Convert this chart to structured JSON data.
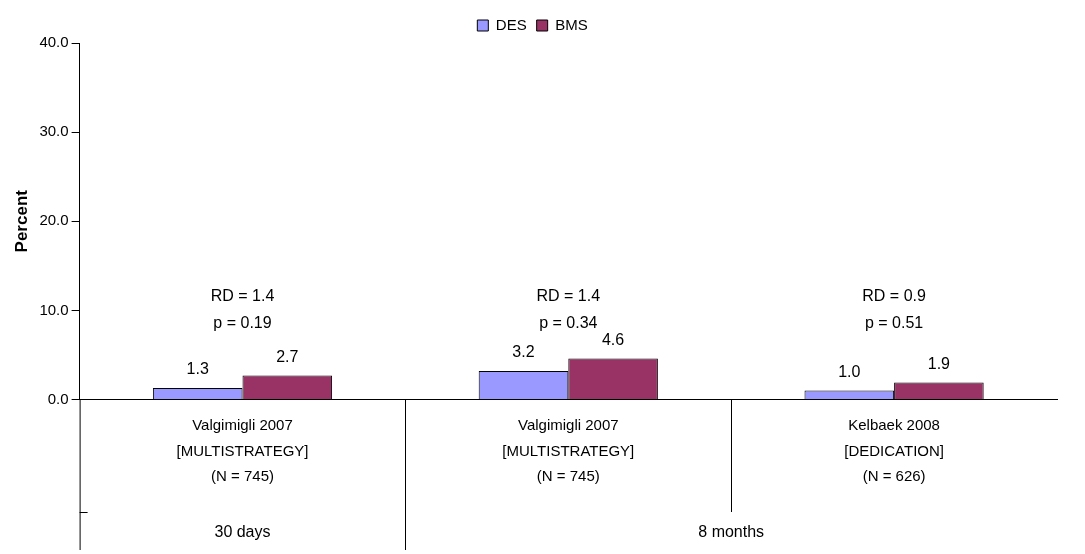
{
  "chart_data": {
    "type": "bar",
    "ylabel": "Percent",
    "categories": [
      "Valgimigli 2007\n[MULTISTRATEGY]\n(N = 745)",
      "Valgimigli 2007\n[MULTISTRATEGY]\n(N = 745)",
      "Kelbaek 2008\n[DEDICATION]\n(N = 626)"
    ],
    "series": [
      {
        "name": "DES",
        "color": "#9999ff",
        "values": [
          1.3,
          3.2,
          1.0
        ],
        "value_labels": [
          "1.3",
          "3.2",
          "1.0"
        ]
      },
      {
        "name": "BMS",
        "color": "#993366",
        "values": [
          2.7,
          4.6,
          1.9
        ],
        "value_labels": [
          "2.7",
          "4.6",
          "1.9"
        ]
      }
    ],
    "ylim": [
      0,
      40
    ],
    "yticks": [
      {
        "value": 0,
        "label": "0.0"
      },
      {
        "value": 10,
        "label": "10.0"
      },
      {
        "value": 20,
        "label": "20.0"
      },
      {
        "value": 30,
        "label": "30.0"
      },
      {
        "value": 40,
        "label": "40.0"
      }
    ],
    "annotations": [
      "RD = 1.4\np = 0.19",
      "RD = 1.4\np = 0.34",
      "RD = 0.9\np = 0.51",
      "30 days",
      "8 months"
    ],
    "grid": false,
    "legend": "top"
  }
}
